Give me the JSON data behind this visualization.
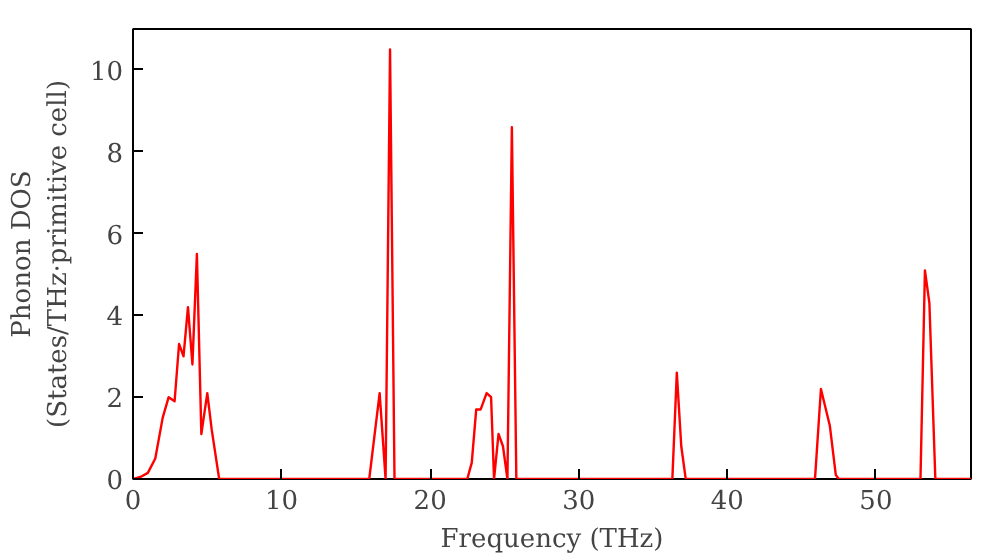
{
  "chart_data": {
    "type": "line",
    "xlabel": "Frequency (THz)",
    "ylabel": "Phonon DOS\n(States/THz·primitive cell)",
    "xlim": [
      0,
      56.4
    ],
    "ylim": [
      0,
      11
    ],
    "xticks": [
      0,
      10,
      20,
      30,
      40,
      50
    ],
    "yticks": [
      0,
      2,
      4,
      6,
      8,
      10
    ],
    "grid": false,
    "series": [
      {
        "color": "#ff0000",
        "x": [
          0,
          0.5,
          1,
          1.5,
          2,
          2.4,
          2.8,
          3.1,
          3.4,
          3.7,
          4.0,
          4.3,
          4.6,
          5.0,
          5.3,
          5.8,
          15.9,
          16.6,
          17.0,
          17.3,
          17.6,
          22.5,
          22.8,
          23.1,
          23.4,
          23.8,
          24.1,
          24.3,
          24.6,
          24.9,
          25.2,
          25.5,
          25.8,
          36.3,
          36.6,
          36.9,
          37.2,
          45.9,
          46.3,
          46.9,
          47.3,
          47.5,
          53.0,
          53.3,
          53.6,
          54.0,
          56.4
        ],
        "values": [
          0,
          0.05,
          0.15,
          0.5,
          1.5,
          2.0,
          1.9,
          3.3,
          3.0,
          4.2,
          2.8,
          5.5,
          1.1,
          2.1,
          1.2,
          0,
          0,
          2.1,
          0,
          10.5,
          0,
          0,
          0.4,
          1.7,
          1.7,
          2.1,
          2.0,
          0,
          1.1,
          0.8,
          0,
          8.6,
          0,
          0,
          2.6,
          0.8,
          0,
          0,
          2.2,
          1.3,
          0.1,
          0,
          0,
          5.1,
          4.3,
          0,
          0
        ]
      }
    ]
  }
}
